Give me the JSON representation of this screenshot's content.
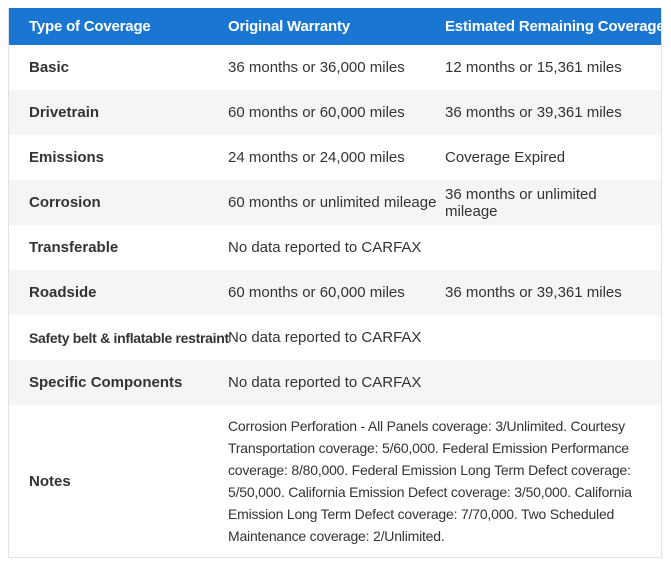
{
  "colors": {
    "header_bg": "#1976d2",
    "header_text": "#ffffff",
    "stripe": "#f5f5f5",
    "border": "#e2e2e2",
    "text": "#333333"
  },
  "table": {
    "columns": [
      "Type of Coverage",
      "Original Warranty",
      "Estimated Remaining Coverage"
    ],
    "rows": [
      {
        "type": "Basic",
        "original": "36 months or 36,000 miles",
        "remaining": "12 months or 15,361 miles"
      },
      {
        "type": "Drivetrain",
        "original": "60 months or 60,000 miles",
        "remaining": "36 months or 39,361 miles"
      },
      {
        "type": "Emissions",
        "original": "24 months or 24,000 miles",
        "remaining": "Coverage Expired"
      },
      {
        "type": "Corrosion",
        "original": "60 months or unlimited mileage",
        "remaining": "36 months or unlimited mileage"
      },
      {
        "type": "Transferable",
        "original": "No data reported to CARFAX",
        "remaining": ""
      },
      {
        "type": "Roadside",
        "original": "60 months or 60,000 miles",
        "remaining": "36 months or 39,361 miles"
      },
      {
        "type": "Safety belt & inflatable restraint",
        "original": "No data reported to CARFAX",
        "remaining": ""
      },
      {
        "type": "Specific Components",
        "original": "No data reported to CARFAX",
        "remaining": ""
      }
    ],
    "notes_label": "Notes",
    "notes_text": "Corrosion Perforation - All Panels coverage: 3/Unlimited. Courtesy Transportation coverage: 5/60,000. Federal Emission Performance coverage: 8/80,000. Federal Emission Long Term Defect coverage: 5/50,000. California Emission Defect coverage: 3/50,000. California Emission Long Term Defect coverage: 7/70,000. Two Scheduled Maintenance coverage: 2/Unlimited."
  }
}
